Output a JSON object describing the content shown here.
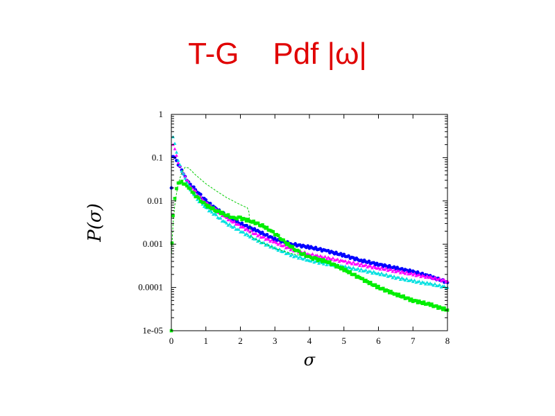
{
  "slide": {
    "title": "T-G    Pdf |ω|"
  },
  "chart_data": {
    "type": "scatter",
    "xlabel": "σ",
    "ylabel": "P(σ)",
    "xlim": [
      0,
      8
    ],
    "ylim": [
      1e-05,
      1
    ],
    "yscale": "log",
    "grid": false,
    "legend": "none",
    "x_ticks": [
      "0",
      "1",
      "2",
      "3",
      "4",
      "5",
      "6",
      "7",
      "8"
    ],
    "y_ticks": [
      "1e-05",
      "0.0001",
      "0.001",
      "0.01",
      "0.1",
      "1"
    ],
    "y_tick_values": [
      1e-05,
      0.0001,
      0.001,
      0.01,
      0.1,
      1
    ],
    "series": [
      {
        "color": "#0000ff",
        "marker": "circle",
        "x": [
          0.0,
          0.05,
          0.1,
          0.15,
          0.2,
          0.3,
          0.4,
          0.5,
          0.6,
          0.8,
          1.0,
          1.3,
          1.6,
          2.0,
          2.5,
          3.0,
          3.5,
          4.0,
          4.5,
          5.0,
          5.5,
          6.0,
          6.5,
          7.0,
          7.5,
          8.0
        ],
        "y": [
          0.02,
          0.1,
          0.1,
          0.09,
          0.07,
          0.05,
          0.035,
          0.028,
          0.022,
          0.015,
          0.01,
          0.0065,
          0.0045,
          0.003,
          0.002,
          0.0013,
          0.001,
          0.00085,
          0.0007,
          0.00055,
          0.00042,
          0.00034,
          0.00028,
          0.00023,
          0.00018,
          0.00013
        ]
      },
      {
        "color": "#ff00ff",
        "marker": "triangle",
        "x": [
          0.05,
          0.1,
          0.15,
          0.2,
          0.3,
          0.4,
          0.5,
          0.6,
          0.8,
          1.0,
          1.3,
          1.6,
          2.0,
          2.5,
          3.0,
          3.5,
          4.0,
          4.5,
          5.0,
          5.5,
          6.0,
          6.5,
          7.0,
          7.5,
          8.0
        ],
        "y": [
          0.2,
          0.15,
          0.11,
          0.08,
          0.05,
          0.035,
          0.026,
          0.02,
          0.013,
          0.009,
          0.006,
          0.004,
          0.0026,
          0.0016,
          0.0011,
          0.00075,
          0.00058,
          0.00048,
          0.0004,
          0.00033,
          0.00028,
          0.00024,
          0.0002,
          0.00017,
          0.00014
        ]
      },
      {
        "color": "#00e0e0",
        "marker": "triangle",
        "x": [
          0.05,
          0.1,
          0.15,
          0.2,
          0.3,
          0.4,
          0.5,
          0.6,
          0.8,
          1.0,
          1.3,
          1.6,
          2.0,
          2.5,
          3.0,
          3.5,
          4.0,
          4.5,
          5.0,
          5.5,
          6.0,
          6.5,
          7.0,
          7.5,
          8.0
        ],
        "y": [
          0.3,
          0.2,
          0.13,
          0.09,
          0.05,
          0.032,
          0.022,
          0.016,
          0.01,
          0.007,
          0.0045,
          0.003,
          0.002,
          0.0012,
          0.0008,
          0.00055,
          0.00042,
          0.00035,
          0.0003,
          0.00025,
          0.00021,
          0.00017,
          0.00014,
          0.00012,
          0.0001
        ]
      },
      {
        "color": "#00ee00",
        "marker": "square",
        "x": [
          0.0,
          0.02,
          0.05,
          0.1,
          0.15,
          0.2,
          0.3,
          0.4,
          0.5,
          0.6,
          0.8,
          1.0,
          1.3,
          1.6,
          1.8,
          2.0,
          2.3,
          2.6,
          2.9,
          3.1,
          3.3,
          3.6,
          3.8,
          4.0,
          4.2,
          4.5,
          5.0,
          5.5,
          6.0,
          6.5,
          7.0,
          7.5,
          8.0
        ],
        "y": [
          1e-05,
          0.001,
          0.0045,
          0.012,
          0.02,
          0.025,
          0.027,
          0.025,
          0.021,
          0.016,
          0.011,
          0.008,
          0.006,
          0.0047,
          0.004,
          0.004,
          0.0034,
          0.0028,
          0.002,
          0.0015,
          0.0011,
          0.00075,
          0.0006,
          0.0005,
          0.00045,
          0.0004,
          0.00026,
          0.00016,
          0.0001,
          7e-05,
          5e-05,
          4e-05,
          3e-05
        ]
      },
      {
        "color": "#00cc00",
        "marker": "dashed-line",
        "x": [
          0.0,
          0.05,
          0.1,
          0.15,
          0.2,
          0.3,
          0.4,
          0.5,
          0.7,
          1.0,
          1.3,
          1.6,
          1.9,
          2.1,
          2.2,
          2.25,
          2.3,
          2.6,
          3.0,
          3.5,
          4.0
        ],
        "y": [
          0.0005,
          0.003,
          0.008,
          0.015,
          0.025,
          0.045,
          0.06,
          0.058,
          0.04,
          0.025,
          0.017,
          0.012,
          0.009,
          0.0075,
          0.007,
          0.0055,
          0.0015,
          0.0011,
          0.0008,
          0.0006,
          0.0005
        ]
      }
    ]
  }
}
